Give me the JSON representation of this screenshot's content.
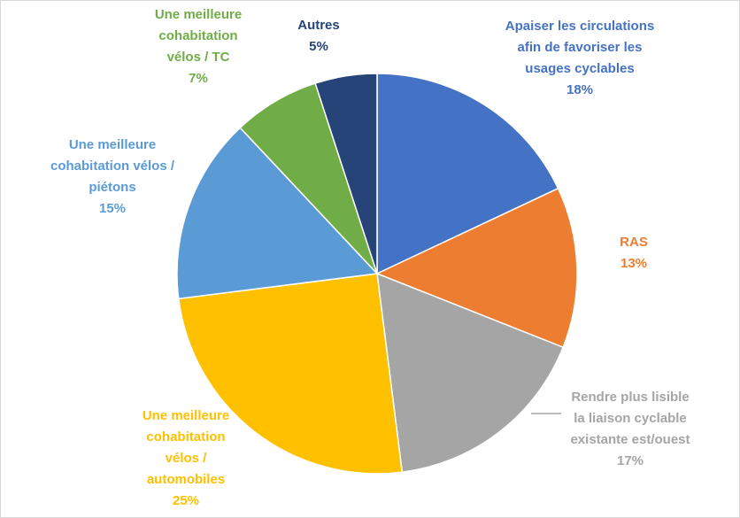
{
  "chart_data": {
    "type": "pie",
    "categories": [
      "Apaiser les circulations afin de favoriser les usages cyclables",
      "RAS",
      "Rendre plus lisible la liaison cyclable existante est/ouest",
      "Une meilleure cohabitation vélos / automobiles",
      "Une meilleure cohabitation vélos / piétons",
      "Une meilleure cohabitation vélos / TC",
      "Autres"
    ],
    "values": [
      18,
      13,
      17,
      25,
      15,
      7,
      5
    ],
    "value_labels": [
      "18%",
      "13%",
      "17%",
      "25%",
      "15%",
      "7%",
      "5%"
    ],
    "colors": [
      "#4472c4",
      "#ed7d31",
      "#a5a5a5",
      "#ffc000",
      "#5b9bd5",
      "#70ad47",
      "#264478"
    ]
  }
}
